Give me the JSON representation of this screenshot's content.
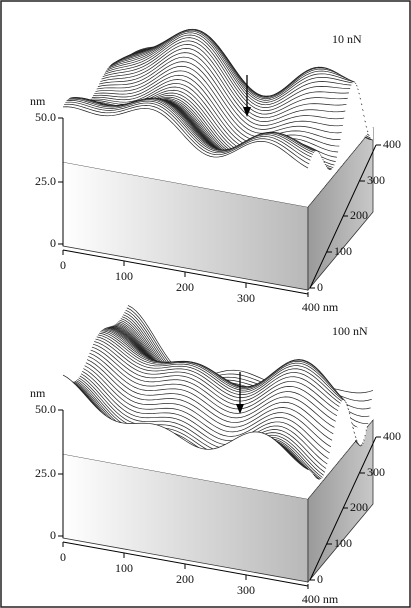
{
  "panels": [
    {
      "label": "10 nN",
      "z_unit": "nm",
      "z_ticks": [
        "50.0",
        "25.0",
        "0"
      ],
      "x_ticks": [
        "0",
        "100",
        "200",
        "300",
        "400 nm"
      ],
      "y_ticks": [
        "0",
        "100",
        "200",
        "300",
        "400"
      ]
    },
    {
      "label": "100 nN",
      "z_unit": "nm",
      "z_ticks": [
        "50.0",
        "25.0",
        "0"
      ],
      "x_ticks": [
        "0",
        "100",
        "200",
        "300",
        "400 nm"
      ],
      "y_ticks": [
        "0",
        "100",
        "200",
        "300",
        "400"
      ]
    }
  ]
}
